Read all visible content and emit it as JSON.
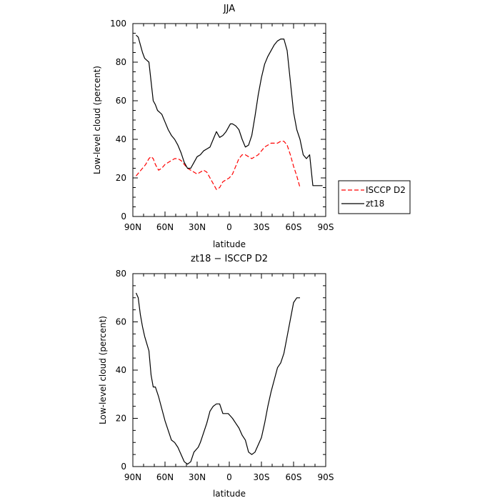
{
  "chart_data": [
    {
      "type": "line",
      "title": "JJA",
      "xlabel": "latitude",
      "ylabel": "Low-level cloud (percent)",
      "xlim": [
        90,
        -90
      ],
      "ylim": [
        0,
        100
      ],
      "x_ticks": [
        90,
        60,
        30,
        0,
        -30,
        -60,
        -90
      ],
      "x_tick_labels": [
        "90N",
        "60N",
        "30N",
        "0",
        "30S",
        "60S",
        "90S"
      ],
      "y_ticks": [
        0,
        20,
        40,
        60,
        80,
        100
      ],
      "y_tick_labels": [
        "0",
        "20",
        "40",
        "60",
        "80",
        "100"
      ],
      "legend": {
        "placement": "outside-right",
        "entries": [
          "ISCCP D2",
          "zt18"
        ]
      },
      "series": [
        {
          "name": "ISCCP D2",
          "color": "#ff0000",
          "dash": "dashed",
          "x": [
            87,
            84,
            81,
            78,
            75,
            73,
            71,
            69,
            66,
            63,
            60,
            57,
            54,
            51,
            48,
            45,
            42,
            39,
            36,
            33,
            30,
            27,
            24,
            21,
            18,
            15,
            12,
            9,
            6,
            3,
            0,
            -3,
            -6,
            -9,
            -12,
            -15,
            -18,
            -21,
            -24,
            -27,
            -30,
            -33,
            -36,
            -39,
            -42,
            -45,
            -48,
            -51,
            -54,
            -57,
            -60,
            -63,
            -66
          ],
          "y": [
            21,
            23,
            25,
            27,
            30,
            31,
            30,
            27,
            24,
            25,
            27,
            28,
            29,
            30,
            30,
            29,
            27,
            25,
            24,
            23,
            22,
            23,
            24,
            23,
            20,
            17,
            14,
            15,
            18,
            19,
            20,
            22,
            26,
            30,
            32,
            32,
            31,
            30,
            31,
            32,
            34,
            36,
            37,
            38,
            38,
            38,
            39,
            39,
            37,
            32,
            26,
            21,
            15
          ]
        },
        {
          "name": "zt18",
          "color": "#000000",
          "dash": "solid",
          "x": [
            87,
            85,
            83,
            81,
            79,
            77,
            75,
            73,
            71,
            69,
            67,
            65,
            63,
            60,
            57,
            54,
            51,
            48,
            45,
            42,
            39,
            36,
            33,
            30,
            27,
            24,
            21,
            18,
            15,
            12,
            9,
            6,
            3,
            1,
            -1,
            -3,
            -6,
            -9,
            -12,
            -15,
            -18,
            -21,
            -24,
            -27,
            -30,
            -33,
            -36,
            -39,
            -42,
            -45,
            -48,
            -51,
            -54,
            -57,
            -60,
            -63,
            -66,
            -69,
            -72,
            -75,
            -78,
            -81,
            -84,
            -87
          ],
          "y": [
            94,
            93,
            89,
            85,
            82,
            81,
            80,
            70,
            60,
            58,
            55,
            54,
            53,
            49,
            45,
            42,
            40,
            37,
            33,
            28,
            25,
            25,
            28,
            31,
            32,
            34,
            35,
            36,
            40,
            44,
            41,
            42,
            44,
            46,
            48,
            48,
            47,
            45,
            40,
            36,
            37,
            42,
            52,
            63,
            72,
            79,
            83,
            86,
            89,
            91,
            92,
            92,
            86,
            70,
            54,
            45,
            40,
            32,
            30,
            32,
            16,
            16,
            16,
            16
          ]
        }
      ]
    },
    {
      "type": "line",
      "title": "zt18 − ISCCP D2",
      "xlabel": "latitude",
      "ylabel": "Low-level cloud (percent)",
      "xlim": [
        90,
        -90
      ],
      "ylim": [
        0,
        80
      ],
      "x_ticks": [
        90,
        60,
        30,
        0,
        -30,
        -60,
        -90
      ],
      "x_tick_labels": [
        "90N",
        "60N",
        "30N",
        "0",
        "30S",
        "60S",
        "90S"
      ],
      "y_ticks": [
        0,
        20,
        40,
        60,
        80
      ],
      "y_tick_labels": [
        "0",
        "20",
        "40",
        "60",
        "80"
      ],
      "series": [
        {
          "color": "#000000",
          "dash": "solid",
          "x": [
            87,
            85,
            83,
            81,
            79,
            77,
            75,
            73,
            71,
            69,
            66,
            63,
            60,
            57,
            54,
            51,
            48,
            45,
            42,
            39,
            36,
            33,
            31,
            29,
            27,
            24,
            21,
            18,
            15,
            12,
            9,
            6,
            3,
            1,
            -1,
            -3,
            -6,
            -9,
            -12,
            -15,
            -18,
            -21,
            -24,
            -27,
            -30,
            -33,
            -36,
            -39,
            -42,
            -45,
            -48,
            -51,
            -54,
            -57,
            -60,
            -63,
            -66
          ],
          "y": [
            72,
            70,
            63,
            58,
            54,
            51,
            48,
            38,
            33,
            33,
            29,
            24,
            19,
            15,
            11,
            10,
            8,
            5,
            2,
            1,
            2,
            6,
            7,
            8,
            10,
            14,
            18,
            23,
            25,
            26,
            26,
            22,
            22,
            22,
            21,
            20,
            18,
            16,
            13,
            11,
            6,
            5,
            6,
            9,
            12,
            18,
            25,
            31,
            36,
            41,
            43,
            47,
            54,
            61,
            68,
            70,
            70
          ]
        }
      ]
    }
  ]
}
